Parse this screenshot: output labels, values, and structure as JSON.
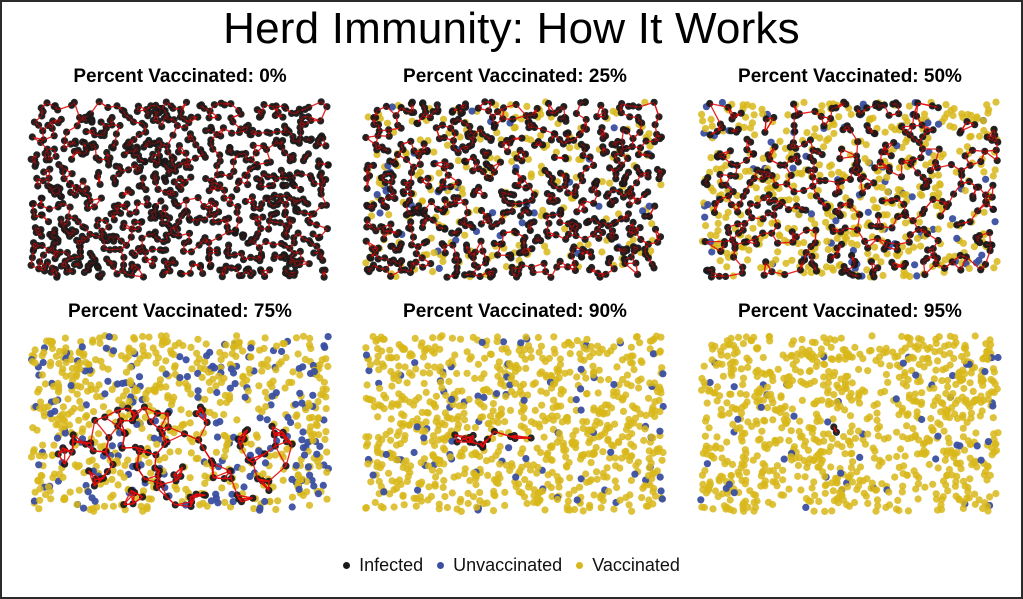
{
  "title": "Herd Immunity: How It Works",
  "colors": {
    "infected": "#1a1a1a",
    "unvaccinated": "#3a4fa0",
    "vaccinated": "#d8b71a",
    "transmission": "#e30b0b"
  },
  "legend": [
    {
      "label": "Infected",
      "color": "#1a1a1a"
    },
    {
      "label": "Unvaccinated",
      "color": "#3a4fa0"
    },
    {
      "label": "Vaccinated",
      "color": "#d8b71a"
    }
  ],
  "chart_data": [
    {
      "type": "scatter",
      "title": "Percent Vaccinated: 0%",
      "percent_vaccinated": 0,
      "outbreak": "entire population",
      "infected_share": 1.0
    },
    {
      "type": "scatter",
      "title": "Percent Vaccinated: 25%",
      "percent_vaccinated": 25,
      "outbreak": "most unvaccinated",
      "infected_share": 0.72
    },
    {
      "type": "scatter",
      "title": "Percent Vaccinated: 50%",
      "percent_vaccinated": 50,
      "outbreak": "widespread",
      "infected_share": 0.42
    },
    {
      "type": "scatter",
      "title": "Percent Vaccinated: 75%",
      "percent_vaccinated": 75,
      "outbreak": "single cluster",
      "infected_share": 0.05
    },
    {
      "type": "scatter",
      "title": "Percent Vaccinated: 90%",
      "percent_vaccinated": 90,
      "outbreak": "tiny chain",
      "infected_share": 0.008
    },
    {
      "type": "scatter",
      "title": "Percent Vaccinated: 95%",
      "percent_vaccinated": 95,
      "outbreak": "isolated",
      "infected_share": 0.003
    }
  ]
}
